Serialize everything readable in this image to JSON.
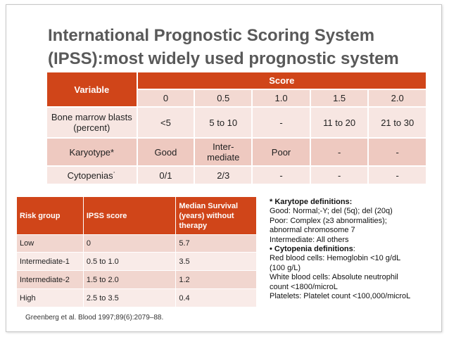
{
  "title": {
    "line1": "International Prognostic Scoring System",
    "line2": "(IPSS):most widely used prognostic system"
  },
  "ipss_table": {
    "variable_header": "Variable",
    "score_header": "Score",
    "scores": [
      "0",
      "0.5",
      "1.0",
      "1.5",
      "2.0"
    ],
    "rows": [
      {
        "variable": "Bone marrow blasts (percent)",
        "cells": [
          "<5",
          "5 to 10",
          "-",
          "11 to 20",
          "21 to 30"
        ]
      },
      {
        "variable": "Karyotype*",
        "cells": [
          "Good",
          "Inter-mediate",
          "Poor",
          "-",
          "-"
        ]
      },
      {
        "variable": "Cytopenias˙",
        "cells": [
          "0/1",
          "2/3",
          "-",
          "-",
          "-"
        ]
      }
    ]
  },
  "risk_table": {
    "headers": [
      "Risk group",
      "IPSS score",
      "Median Survival (years) without therapy"
    ],
    "rows": [
      [
        "Low",
        "0",
        "5.7"
      ],
      [
        "Intermediate-1",
        "0.5 to 1.0",
        "3.5"
      ],
      [
        "Intermediate-2",
        "1.5 to 2.0",
        "1.2"
      ],
      [
        "High",
        "2.5 to 3.5",
        "0.4"
      ]
    ]
  },
  "citation": "Greenberg et al. Blood 1997;89(6):2079–88.",
  "definitions": {
    "karyotype_heading": "* Karytope definitions:",
    "good": "Good: Normal;-Y; del (5q); del (20q)",
    "poor_1": "Poor: Complex (≥3 abnormalities);",
    "poor_2": "abnormal chromosome 7",
    "intermediate": "Intermediate: All others",
    "cytopenia_bullet": "• ",
    "cytopenia_heading": "Cytopenia definitions",
    "cytopenia_colon": ":",
    "rbc_1": "Red blood cells: Hemoglobin <10 g/dL",
    "rbc_2": "(100 g/L)",
    "wbc_1": "White blood cells: Absolute neutrophil",
    "wbc_2": "count <1800/microL",
    "platelets": "Platelets: Platelet count <100,000/microL"
  }
}
